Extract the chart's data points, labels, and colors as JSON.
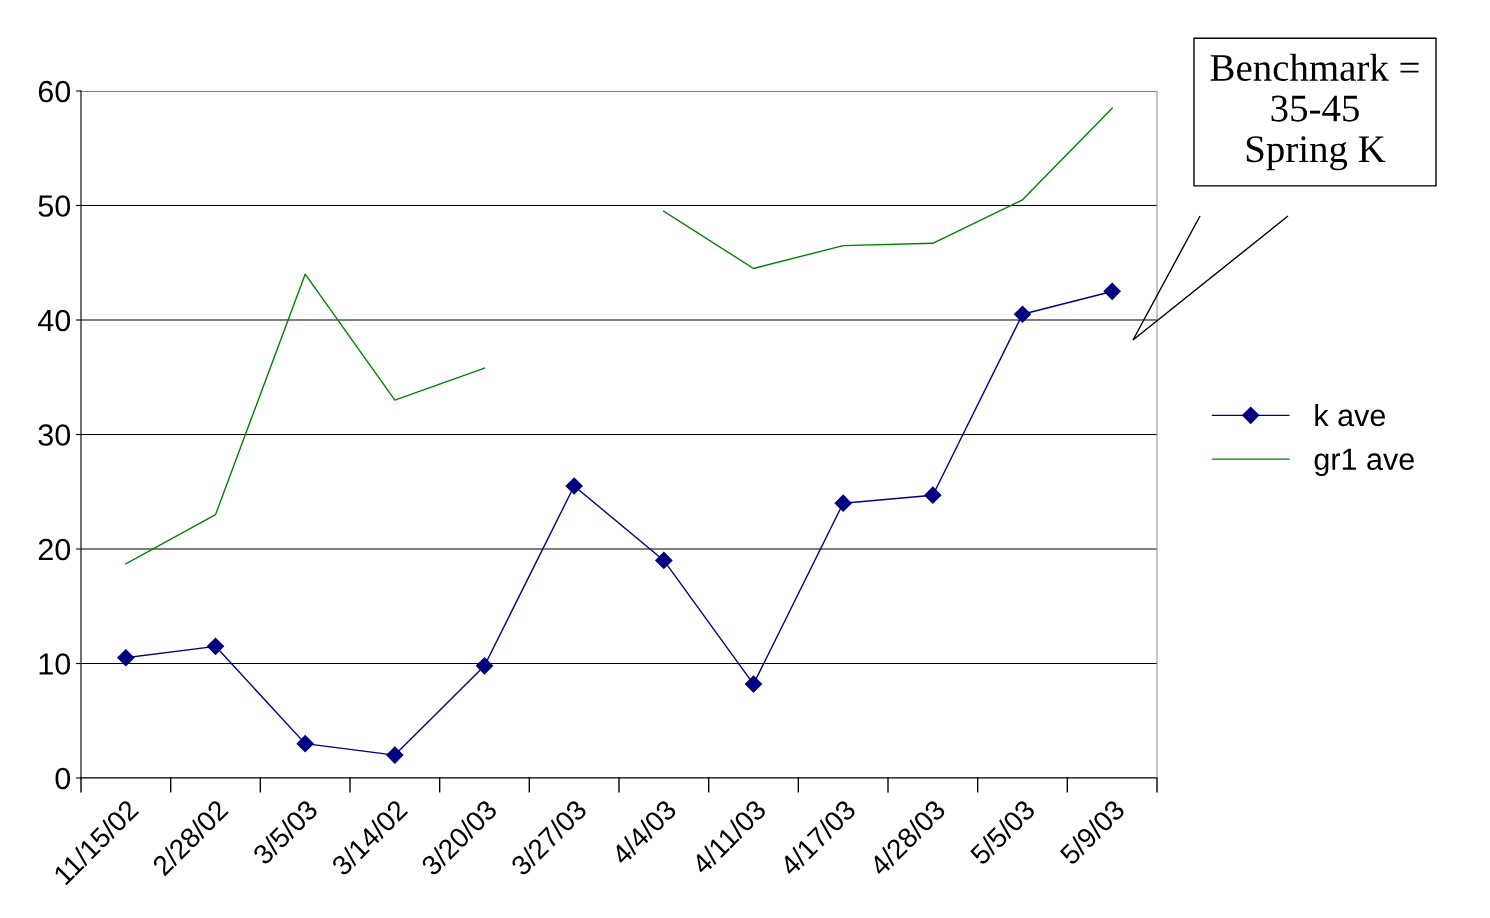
{
  "chart_data": {
    "type": "line",
    "categories": [
      "11/15/02",
      "2/28/02",
      "3/5/03",
      "3/14/02",
      "3/20/03",
      "3/27/03",
      "4/4/03",
      "4/11/03",
      "4/17/03",
      "4/28/03",
      "5/5/03",
      "5/9/03"
    ],
    "series": [
      {
        "name": "k ave",
        "color": "#000080",
        "marker": "diamond",
        "values": [
          10.5,
          11.5,
          3,
          2,
          9.8,
          25.5,
          19,
          8.2,
          24,
          24.7,
          40.5,
          42.5
        ]
      },
      {
        "name": "gr1 ave",
        "color": "#008000",
        "marker": "none",
        "values": [
          18.7,
          23,
          44,
          33,
          35.8,
          null,
          49.5,
          44.5,
          46.5,
          46.7,
          50.5,
          58.5
        ]
      }
    ],
    "ylim": [
      0,
      60
    ],
    "yticks": [
      0,
      10,
      20,
      30,
      40,
      50,
      60
    ],
    "grid": "y",
    "legend": "right",
    "annotations": [
      "Benchmark =\n35-45\nSpring K"
    ]
  }
}
